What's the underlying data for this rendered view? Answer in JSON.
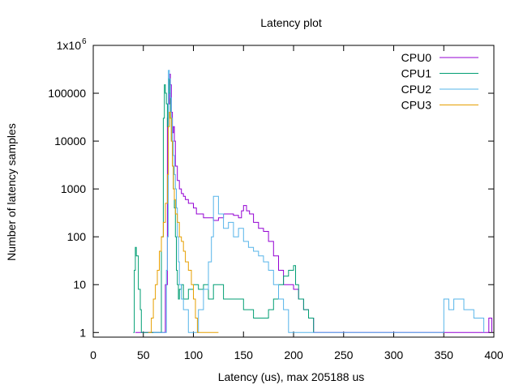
{
  "chart_data": {
    "type": "line",
    "title": "Latency plot",
    "xlabel": "Latency (us), max 205188 us",
    "ylabel": "Number of latency samples",
    "xlim": [
      0,
      400
    ],
    "ylim": [
      0.8,
      1000000
    ],
    "yscale": "log",
    "xticks": [
      0,
      50,
      100,
      150,
      200,
      250,
      300,
      350,
      400
    ],
    "yticks": [
      {
        "value": 1,
        "label": "1"
      },
      {
        "value": 10,
        "label": "10"
      },
      {
        "value": 100,
        "label": "100"
      },
      {
        "value": 1000,
        "label": "1000"
      },
      {
        "value": 10000,
        "label": "10000"
      },
      {
        "value": 100000,
        "label": "100000"
      },
      {
        "value": 1000000,
        "label": "1x10",
        "sup": "6"
      }
    ],
    "grid": false,
    "legend_position": "top-right",
    "series": [
      {
        "name": "CPU0",
        "color": "#9400d3",
        "x": [
          42,
          60,
          68,
          72,
          74,
          75,
          76,
          77,
          78,
          79,
          80,
          81,
          82,
          84,
          86,
          88,
          90,
          92,
          95,
          98,
          100,
          103,
          106,
          110,
          115,
          120,
          125,
          130,
          135,
          140,
          145,
          148,
          150,
          153,
          156,
          160,
          165,
          170,
          175,
          180,
          185,
          190,
          195,
          200,
          205,
          210,
          215,
          220,
          225,
          230,
          240,
          250,
          260,
          270,
          280,
          290,
          300,
          320,
          340,
          360,
          380,
          390,
          395,
          398
        ],
        "y": [
          1,
          1,
          1,
          10,
          30000,
          60000,
          250000,
          150000,
          40000,
          15000,
          20000,
          10000,
          3000,
          1500,
          1000,
          800,
          700,
          600,
          500,
          500,
          400,
          300,
          300,
          250,
          250,
          220,
          250,
          300,
          300,
          280,
          250,
          350,
          450,
          350,
          300,
          200,
          150,
          130,
          80,
          40,
          20,
          10,
          10,
          8,
          5,
          3,
          2,
          1,
          1,
          1,
          1,
          1,
          1,
          1,
          1,
          1,
          1,
          1,
          1,
          1,
          1,
          1,
          2,
          1
        ]
      },
      {
        "name": "CPU1",
        "color": "#009e73",
        "x": [
          40,
          41,
          42,
          43,
          45,
          47,
          48,
          50,
          52,
          54,
          56,
          58,
          60,
          62,
          64,
          66,
          68,
          70,
          71,
          72,
          73,
          74,
          75,
          76,
          77,
          78,
          79,
          80,
          81,
          82,
          83,
          84,
          85,
          86,
          88,
          90,
          95,
          100,
          105,
          110,
          115,
          120,
          130,
          140,
          150,
          160,
          170,
          175,
          180,
          185,
          190,
          195,
          200,
          202,
          205,
          210,
          215,
          220
        ],
        "y": [
          1,
          20,
          60,
          40,
          8,
          3,
          1,
          1,
          1,
          1,
          1,
          1,
          1,
          1,
          1,
          1,
          100,
          30000,
          150000,
          100000,
          60000,
          20000,
          200000,
          100000,
          30000,
          10000,
          3000,
          1000,
          400,
          100,
          20,
          10,
          5,
          8,
          10,
          5,
          8,
          10,
          8,
          10,
          5,
          10,
          5,
          5,
          3,
          2,
          2,
          3,
          5,
          10,
          15,
          20,
          25,
          10,
          5,
          3,
          2,
          1
        ]
      },
      {
        "name": "CPU2",
        "color": "#56b4e9",
        "x": [
          60,
          70,
          73,
          74,
          75,
          76,
          77,
          78,
          79,
          80,
          81,
          82,
          83,
          84,
          85,
          86,
          88,
          90,
          95,
          100,
          105,
          110,
          115,
          118,
          120,
          125,
          130,
          135,
          140,
          145,
          150,
          155,
          160,
          165,
          170,
          175,
          180,
          185,
          190,
          195,
          200,
          210,
          220,
          230,
          240,
          250,
          260,
          280,
          300,
          320,
          340,
          350,
          355,
          360,
          370,
          380,
          390
        ],
        "y": [
          1,
          1,
          20,
          100,
          300000,
          200000,
          80000,
          30000,
          10000,
          5000,
          2000,
          1000,
          400,
          100,
          30,
          10,
          5,
          3,
          1,
          1,
          3,
          8,
          30,
          100,
          700,
          300,
          150,
          200,
          100,
          150,
          80,
          60,
          50,
          40,
          30,
          20,
          10,
          5,
          3,
          1,
          1,
          1,
          1,
          1,
          1,
          1,
          1,
          1,
          1,
          1,
          1,
          5,
          3,
          5,
          3,
          2,
          1
        ]
      },
      {
        "name": "CPU3",
        "color": "#e69f00",
        "x": [
          55,
          58,
          60,
          62,
          64,
          66,
          68,
          70,
          72,
          74,
          75,
          76,
          77,
          78,
          79,
          80,
          81,
          82,
          84,
          86,
          88,
          90,
          92,
          95,
          98,
          100,
          102,
          104,
          106,
          108,
          110,
          115,
          120,
          125
        ],
        "y": [
          1,
          2,
          5,
          10,
          20,
          50,
          100,
          200,
          500,
          2000,
          20000,
          40000,
          30000,
          10000,
          3000,
          1000,
          600,
          300,
          200,
          100,
          80,
          50,
          30,
          20,
          10,
          5,
          2,
          1,
          1,
          1,
          1,
          1,
          1,
          1
        ]
      }
    ]
  }
}
